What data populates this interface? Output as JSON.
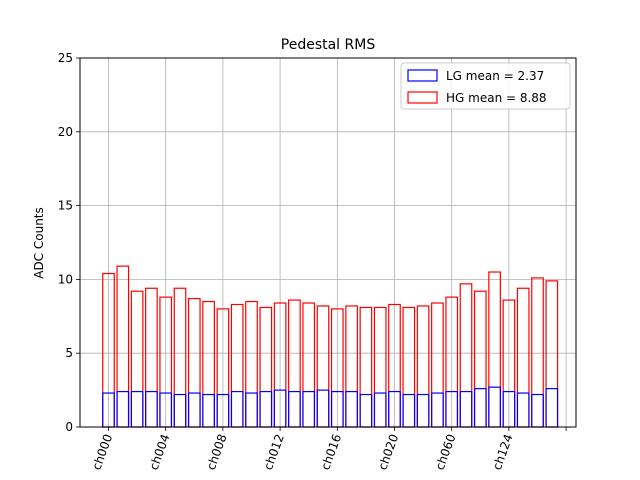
{
  "chart_data": {
    "type": "bar",
    "title": "Pedestal RMS",
    "xlabel": "",
    "ylabel": "ADC Counts",
    "ylim": [
      0,
      25
    ],
    "yticks": [
      0,
      5,
      10,
      15,
      20,
      25
    ],
    "grid": true,
    "legend_position": "top-right",
    "bar_count": 32,
    "xtick_labels": [
      "ch000",
      "ch004",
      "ch008",
      "ch012",
      "ch016",
      "ch020",
      "ch060",
      "ch124",
      ""
    ],
    "series": [
      {
        "name": "LG mean = 2.37",
        "color": "#0000ff",
        "values": [
          2.3,
          2.4,
          2.4,
          2.4,
          2.3,
          2.2,
          2.3,
          2.2,
          2.2,
          2.4,
          2.3,
          2.4,
          2.5,
          2.4,
          2.4,
          2.5,
          2.4,
          2.4,
          2.2,
          2.3,
          2.4,
          2.2,
          2.2,
          2.3,
          2.4,
          2.4,
          2.6,
          2.7,
          2.4,
          2.3,
          2.2,
          2.6
        ]
      },
      {
        "name": "HG mean = 8.88",
        "color": "#ff0000",
        "values": [
          10.4,
          10.9,
          9.2,
          9.4,
          8.8,
          9.4,
          8.7,
          8.5,
          8.0,
          8.3,
          8.5,
          8.1,
          8.4,
          8.6,
          8.4,
          8.2,
          8.0,
          8.2,
          8.1,
          8.1,
          8.3,
          8.1,
          8.2,
          8.4,
          8.8,
          9.7,
          9.2,
          10.5,
          8.6,
          9.4,
          10.1,
          9.9
        ]
      }
    ]
  }
}
